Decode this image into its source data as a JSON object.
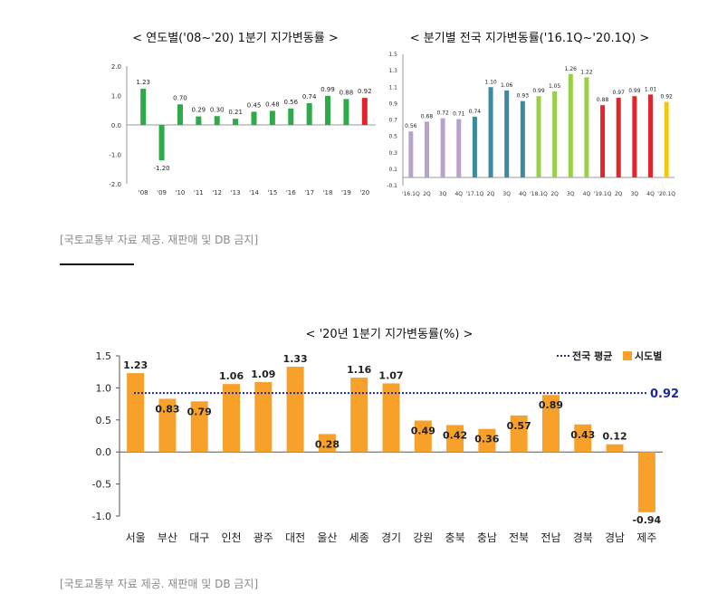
{
  "chart_data": [
    {
      "type": "bar",
      "title": "<  연도별('08~'20) 1분기  지가변동률  >",
      "categories": [
        "'08",
        "'09",
        "'10",
        "'11",
        "'12",
        "'13",
        "'14",
        "'15",
        "'16",
        "'17",
        "'18",
        "'19",
        "'20"
      ],
      "values": [
        1.23,
        -1.2,
        0.7,
        0.29,
        0.3,
        0.21,
        0.45,
        0.48,
        0.56,
        0.74,
        0.99,
        0.88,
        0.92
      ],
      "value_labels": [
        "1.23",
        "-1.20",
        "0.70",
        "0.29",
        "0.30",
        "0.21",
        "0.45",
        "0.48",
        "0.56",
        "0.74",
        "0.99",
        "0.88",
        "0.92"
      ],
      "colors": [
        "#2eaa48",
        "#2eaa48",
        "#2eaa48",
        "#2eaa48",
        "#2eaa48",
        "#2eaa48",
        "#2eaa48",
        "#2eaa48",
        "#2eaa48",
        "#2eaa48",
        "#2eaa48",
        "#2eaa48",
        "#e0262a"
      ],
      "yticks": [
        "2.0",
        "1.0",
        "0.0",
        "-1.0",
        "-2.0"
      ],
      "ylim": [
        -2.0,
        2.0
      ],
      "grid": false
    },
    {
      "type": "bar",
      "title": "<  분기별 전국 지가변동률('16.1Q~'20.1Q)  >",
      "categories": [
        "'16.1Q",
        "2Q",
        "3Q",
        "4Q",
        "'17.1Q",
        "2Q",
        "3Q",
        "4Q",
        "'18.1Q",
        "2Q",
        "3Q",
        "4Q",
        "'19.1Q",
        "2Q",
        "3Q",
        "4Q",
        "'20.1Q"
      ],
      "values": [
        0.56,
        0.68,
        0.72,
        0.71,
        0.74,
        1.1,
        1.06,
        0.93,
        0.99,
        1.05,
        1.26,
        1.22,
        0.88,
        0.97,
        0.99,
        1.01,
        0.92
      ],
      "value_labels": [
        "0.56",
        "0.68",
        "0.72",
        "0.71",
        "0.74",
        "1.10",
        "1.06",
        "0.93",
        "0.99",
        "1.05",
        "1.26",
        "1.22",
        "0.88",
        "0.97",
        "0.99",
        "1.01",
        "0.92"
      ],
      "colors": [
        "#b8a2cc",
        "#b8a2cc",
        "#b8a2cc",
        "#b8a2cc",
        "#3a8aa0",
        "#3a8aa0",
        "#3a8aa0",
        "#3a8aa0",
        "#9ad047",
        "#9ad047",
        "#9ad047",
        "#9ad047",
        "#e0262a",
        "#e0262a",
        "#e0262a",
        "#e0262a",
        "#f2c80f"
      ],
      "yticks": [
        "1.5",
        "1.3",
        "1.1",
        "0.9",
        "0.7",
        "0.5",
        "0.3",
        "0.1",
        "-0.1"
      ],
      "ylim": [
        -0.1,
        1.5
      ],
      "grid": false
    },
    {
      "type": "bar",
      "title": "<  '20년 1분기 지가변동률(%)  >",
      "categories": [
        "서울",
        "부산",
        "대구",
        "인천",
        "광주",
        "대전",
        "울산",
        "세종",
        "경기",
        "강원",
        "충북",
        "충남",
        "전북",
        "전남",
        "경북",
        "경남",
        "제주"
      ],
      "values": [
        1.23,
        0.83,
        0.79,
        1.06,
        1.09,
        1.33,
        0.28,
        1.16,
        1.07,
        0.49,
        0.42,
        0.36,
        0.57,
        0.89,
        0.43,
        0.12,
        -0.94
      ],
      "value_labels": [
        "1.23",
        "0.83",
        "0.79",
        "1.06",
        "1.09",
        "1.33",
        "0.28",
        "1.16",
        "1.07",
        "0.49",
        "0.42",
        "0.36",
        "0.57",
        "0.89",
        "0.43",
        "0.12",
        "-0.94"
      ],
      "label_position": [
        "above",
        "inside",
        "inside",
        "above",
        "above",
        "above",
        "inside",
        "above",
        "above",
        "inside",
        "inside",
        "inside",
        "inside",
        "inside",
        "inside",
        "above",
        "below"
      ],
      "bar_color": "#f7a12a",
      "yticks": [
        "1.5",
        "1.0",
        "0.5",
        "0.0",
        "-0.5",
        "-1.0"
      ],
      "ylim": [
        -1.0,
        1.5
      ],
      "average": {
        "name": "전국 평균",
        "value": 0.92,
        "label": "0.92",
        "color": "#1f2aa0"
      },
      "legend": {
        "position": "top-right",
        "items": [
          "전국 평균",
          "시도별"
        ]
      },
      "grid": false
    }
  ],
  "captions": {
    "top": "[국토교통부 자료 제공. 재판매 및 DB 금지]",
    "bottom": "[국토교통부 자료 제공. 재판매 및 DB 금지]"
  }
}
